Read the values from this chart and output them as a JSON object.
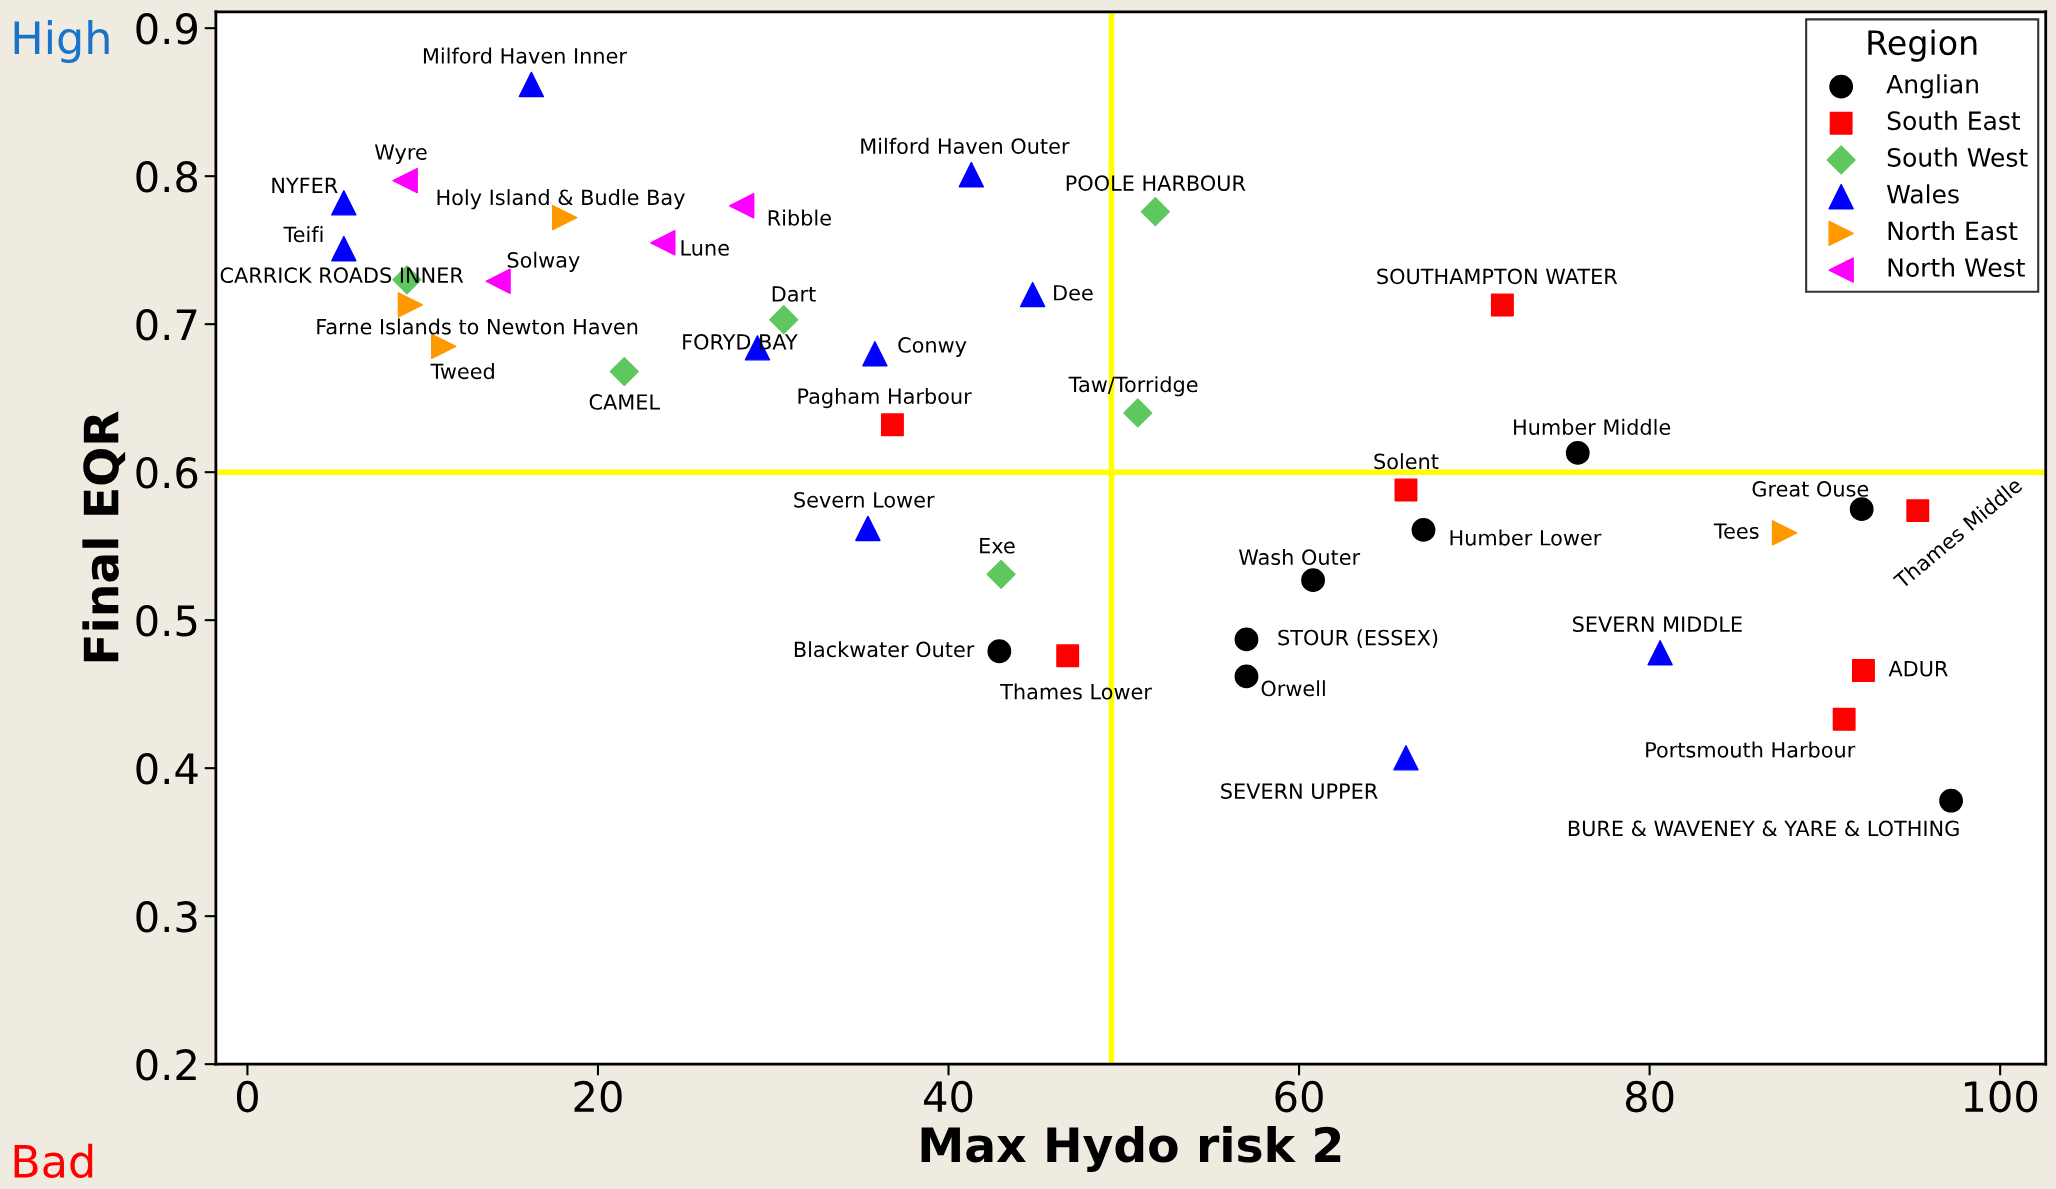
{
  "chart_data": {
    "type": "scatter",
    "xlabel": "Max Hydo risk 2",
    "ylabel": "Final EQR",
    "legend_title": "Region",
    "legend": "top right",
    "grid": false,
    "xlim": [
      -1.8,
      102.6
    ],
    "ylim": [
      0.2,
      0.911
    ],
    "xticks": [
      0,
      20,
      40,
      60,
      80,
      100
    ],
    "yticks": [
      0.2,
      0.3,
      0.4,
      0.5,
      0.6,
      0.7,
      0.8,
      0.9
    ],
    "annotations": [
      "High",
      "Bad"
    ],
    "ref_lines": [
      {
        "axis": "x",
        "value": 49.3,
        "color": "#ffff00"
      },
      {
        "axis": "y",
        "value": 0.6,
        "color": "#ffff00"
      }
    ],
    "series": [
      {
        "name": "Anglian",
        "color": "#000000",
        "marker": "circle",
        "x": [
          75.9,
          92.1,
          67.1,
          60.8,
          57.0,
          57.0,
          42.9,
          97.2
        ],
        "values": [
          0.613,
          0.575,
          0.561,
          0.527,
          0.487,
          0.462,
          0.479,
          0.378
        ],
        "value_labels": [
          "Humber Middle",
          "Great Ouse",
          "Humber Lower",
          "Wash Outer",
          "STOUR (ESSEX)",
          "Orwell",
          "Blackwater Outer",
          "BURE & WAVENEY & YARE & LOTHING"
        ]
      },
      {
        "name": "South East",
        "color": "#ff0000",
        "marker": "square",
        "x": [
          71.6,
          36.8,
          66.1,
          95.3,
          46.8,
          92.2,
          91.1
        ],
        "values": [
          0.713,
          0.632,
          0.588,
          0.574,
          0.476,
          0.466,
          0.433
        ],
        "value_labels": [
          "SOUTHAMPTON WATER",
          "Pagham Harbour",
          "Solent",
          "Thames Middle",
          "Thames Lower",
          "ADUR",
          "Portsmouth Harbour"
        ]
      },
      {
        "name": "South West",
        "color": "#5ec85e",
        "marker": "diamond",
        "x": [
          51.8,
          9.1,
          30.6,
          21.5,
          50.8,
          43.0
        ],
        "values": [
          0.776,
          0.73,
          0.703,
          0.668,
          0.64,
          0.531
        ],
        "value_labels": [
          "POOLE HARBOUR",
          "CARRICK ROADS INNER",
          "Dart",
          "CAMEL",
          "Taw/Torridge",
          "Exe"
        ]
      },
      {
        "name": "Wales",
        "color": "#0000ff",
        "marker": "triangle",
        "x": [
          16.2,
          41.3,
          5.5,
          5.5,
          44.8,
          29.1,
          35.8,
          35.4,
          80.6,
          66.1
        ],
        "values": [
          0.862,
          0.801,
          0.782,
          0.751,
          0.72,
          0.684,
          0.68,
          0.562,
          0.478,
          0.407
        ],
        "value_labels": [
          "Milford Haven Inner",
          "Milford Haven Outer",
          "NYFER",
          "Teifi",
          "Dee",
          "FORYD BAY",
          "Conwy",
          "Severn Lower",
          "SEVERN MIDDLE",
          "SEVERN UPPER"
        ]
      },
      {
        "name": "North East",
        "color": "#ff9900",
        "marker": "triangle_right",
        "x": [
          18.1,
          9.3,
          11.2,
          87.7
        ],
        "values": [
          0.772,
          0.713,
          0.685,
          0.559
        ],
        "value_labels": [
          "Holy Island & Budle Bay",
          "Farne Islands to Newton Haven",
          "Tweed",
          "Tees"
        ]
      },
      {
        "name": "North West",
        "color": "#ff00ff",
        "marker": "triangle_left",
        "x": [
          9.0,
          28.2,
          23.7,
          14.3
        ],
        "values": [
          0.797,
          0.78,
          0.755,
          0.729
        ],
        "value_labels": [
          "Wyre",
          "Ribble",
          "Lune",
          "Solway"
        ]
      }
    ]
  }
}
